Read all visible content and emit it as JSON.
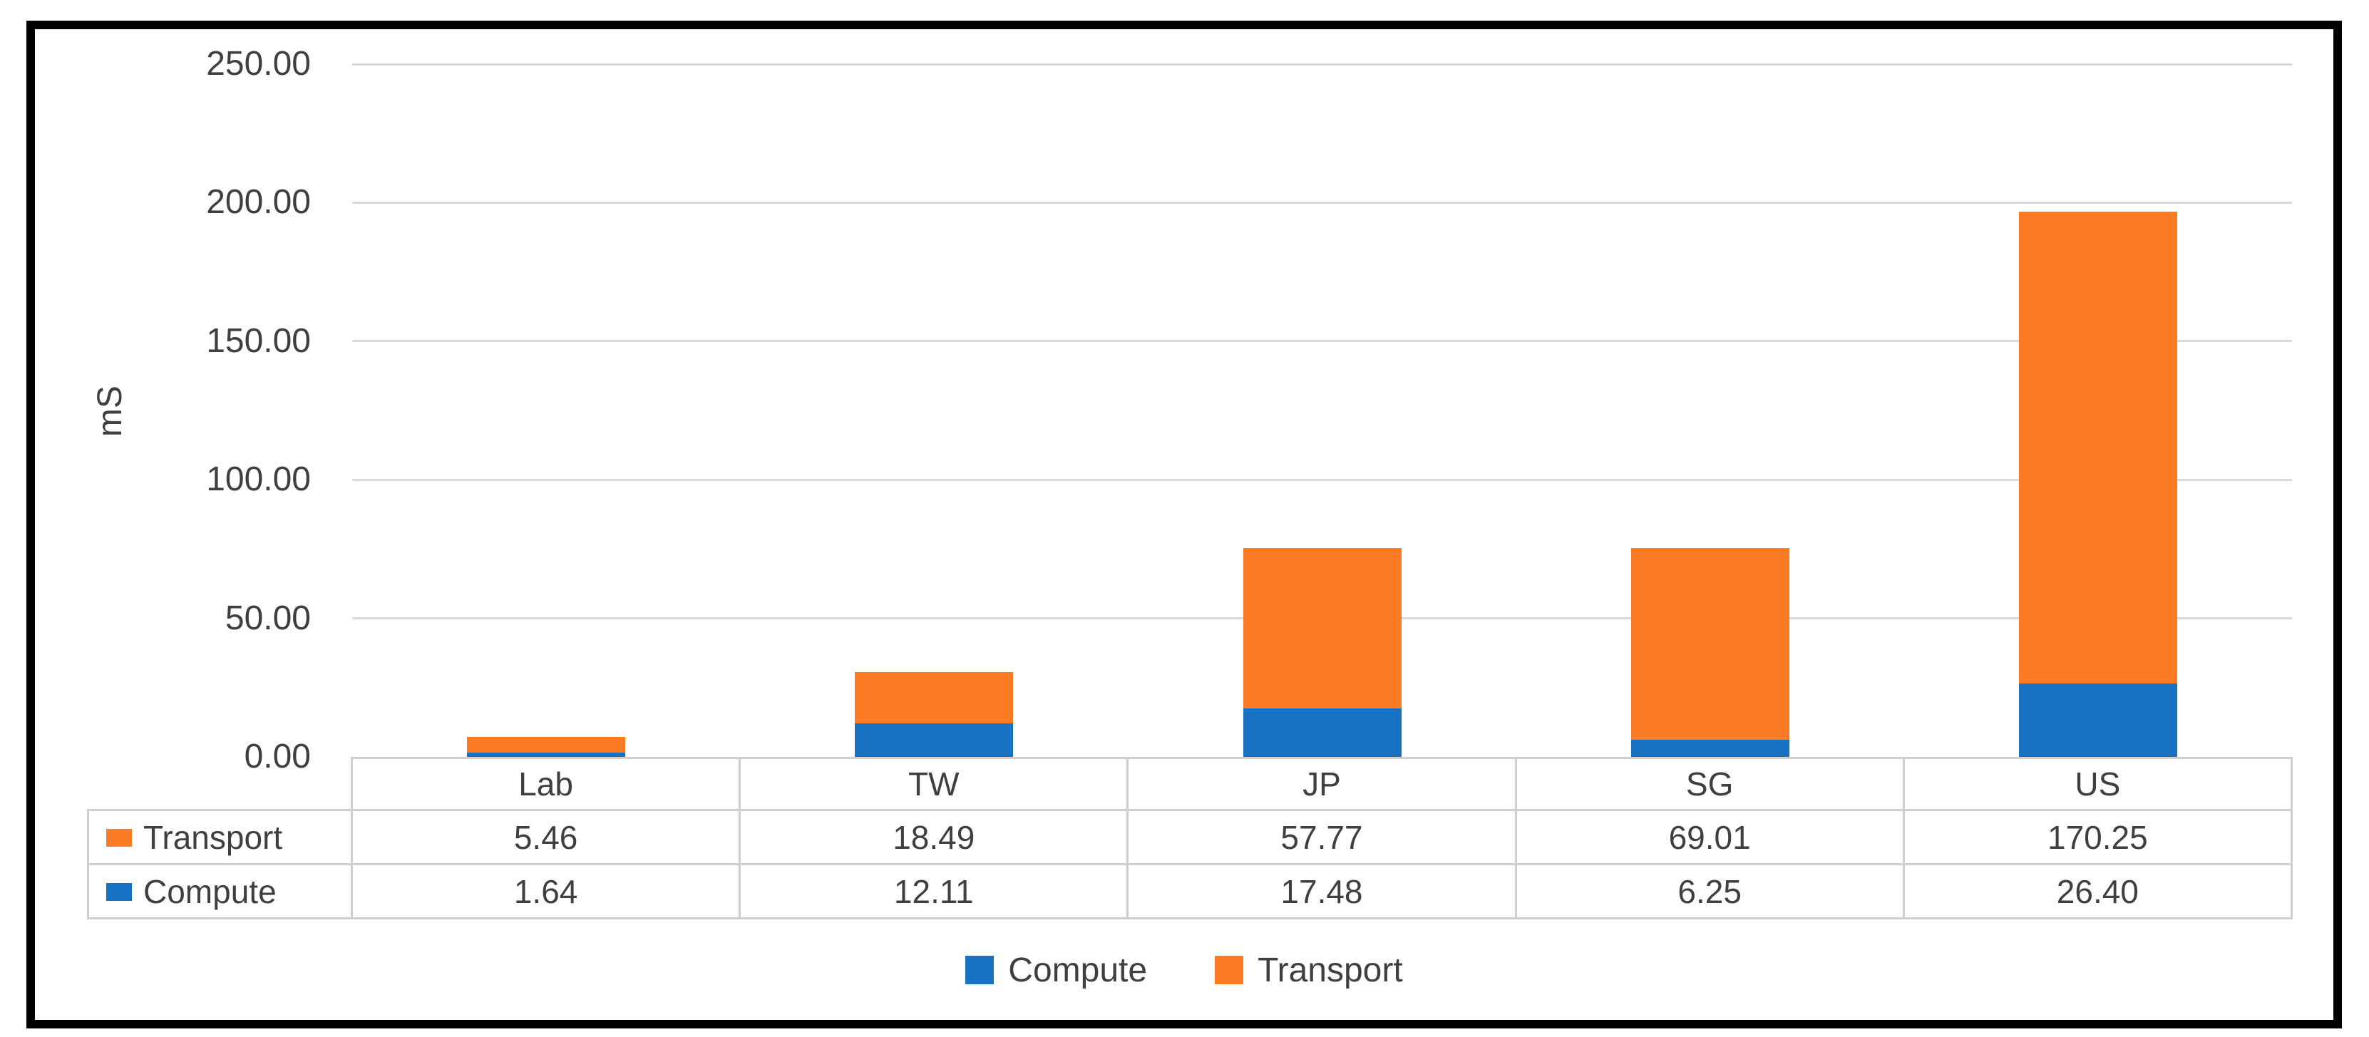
{
  "chart_data": {
    "type": "bar",
    "stacked": true,
    "title": "",
    "xlabel": "",
    "ylabel": "mS",
    "categories": [
      "Lab",
      "TW",
      "JP",
      "SG",
      "US"
    ],
    "series": [
      {
        "name": "Compute",
        "color": "#1772c4",
        "values": [
          1.64,
          12.11,
          17.48,
          6.25,
          26.4
        ],
        "display_values": [
          "1.64",
          "12.11",
          "17.48",
          "6.25",
          "26.40"
        ]
      },
      {
        "name": "Transport",
        "color": "#fb7c24",
        "values": [
          5.46,
          18.49,
          57.77,
          69.01,
          170.25
        ],
        "display_values": [
          "5.46",
          "18.49",
          "57.77",
          "69.01",
          "170.25"
        ]
      }
    ],
    "ylim": [
      0,
      250
    ],
    "yticks": [
      0,
      50,
      100,
      150,
      200,
      250
    ],
    "ytick_labels": [
      "0.00",
      "50.00",
      "100.00",
      "150.00",
      "200.00",
      "250.00"
    ],
    "grid": "horizontal",
    "legend": {
      "position": "bottom",
      "items": [
        "Compute",
        "Transport"
      ]
    },
    "data_table": {
      "visible": true,
      "row_order": [
        "Transport",
        "Compute"
      ]
    }
  },
  "colors": {
    "grid": "#d9d9d9",
    "table_border": "#cfcfcf",
    "text": "#3f3f3f",
    "frame": "#000000"
  }
}
